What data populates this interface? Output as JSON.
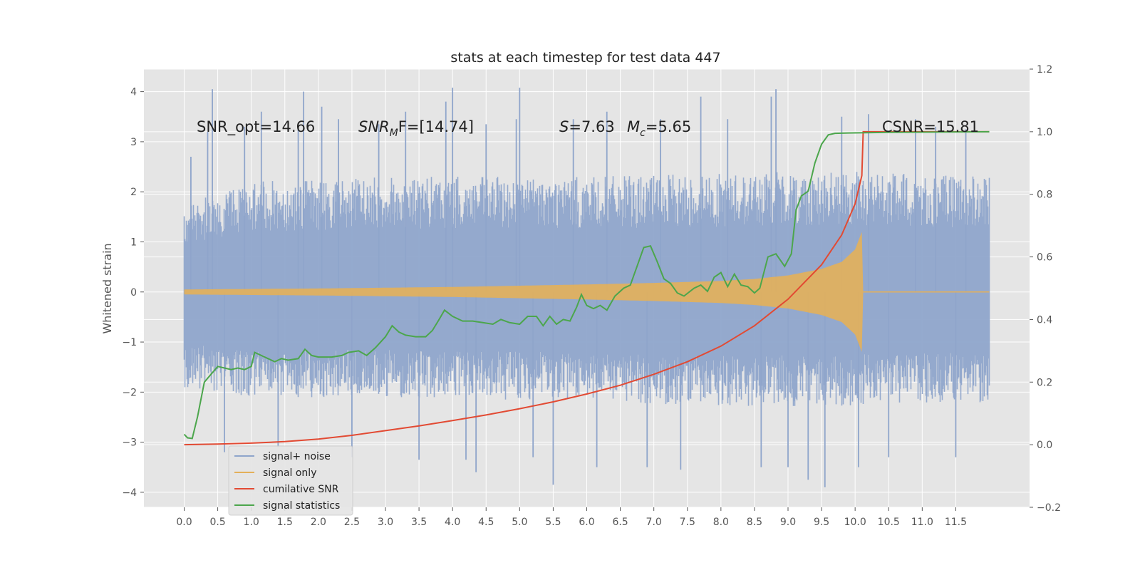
{
  "chart_data": {
    "type": "line",
    "title": "stats at each timestep for test data 447",
    "xlabel": "",
    "ylabel": "Whitened strain",
    "y2label": "",
    "xlim": [
      -0.6,
      12.6
    ],
    "ylim": [
      -4.3,
      4.45
    ],
    "y2lim": [
      -0.2,
      1.2
    ],
    "x_ticks": [
      "0.0",
      "0.5",
      "1.0",
      "1.5",
      "2.0",
      "2.5",
      "3.0",
      "3.5",
      "4.0",
      "4.5",
      "5.0",
      "5.5",
      "6.0",
      "6.5",
      "7.0",
      "7.5",
      "8.0",
      "8.5",
      "9.0",
      "9.5",
      "10.0",
      "10.5",
      "11.0",
      "11.5"
    ],
    "y_ticks": [
      4,
      3,
      2,
      1,
      0,
      -1,
      -2,
      -3,
      -4
    ],
    "y_tick_labels": [
      "4",
      "3",
      "2",
      "1",
      "0",
      "−1",
      "−2",
      "−3",
      "−4"
    ],
    "y2_ticks": [
      1.2,
      1.0,
      0.8,
      0.6,
      0.4,
      0.2,
      0.0,
      -0.2
    ],
    "y2_tick_labels": [
      "1.2",
      "1.0",
      "0.8",
      "0.6",
      "0.4",
      "0.2",
      "0.0",
      "−0.2"
    ],
    "grid": true,
    "legend_position": "lower-left",
    "annotations": {
      "snr_opt": "SNR_opt=14.66",
      "snr_mf": "SNR",
      "snr_mf_sub": "M",
      "snr_mf_rest": "F=[14.74]",
      "s": "S",
      "s_rest": "=7.63",
      "mc": "M",
      "mc_sub": "c",
      "mc_rest": "=5.65",
      "csnr": "CSNR=15.81"
    },
    "series": [
      {
        "name": "signal+ noise",
        "axis": "left",
        "color": "#8fa5cb",
        "kind": "noise-band",
        "x_range": [
          0.0,
          12.0
        ],
        "band_upper": [
          [
            0.0,
            1.75
          ],
          [
            1.0,
            2.2
          ],
          [
            3.0,
            2.3
          ],
          [
            6.0,
            2.3
          ],
          [
            9.0,
            2.4
          ],
          [
            10.0,
            2.4
          ],
          [
            12.0,
            2.3
          ]
        ],
        "band_lower": [
          [
            0.0,
            -1.9
          ],
          [
            1.0,
            -2.1
          ],
          [
            3.0,
            -2.1
          ],
          [
            6.0,
            -2.2
          ],
          [
            9.0,
            -2.3
          ],
          [
            12.0,
            -2.2
          ]
        ],
        "spikes": [
          [
            0.1,
            2.7
          ],
          [
            0.35,
            3.2
          ],
          [
            0.42,
            4.05
          ],
          [
            0.6,
            -3.2
          ],
          [
            0.9,
            3.3
          ],
          [
            1.15,
            3.6
          ],
          [
            1.4,
            -3.1
          ],
          [
            1.7,
            3.3
          ],
          [
            1.78,
            4.0
          ],
          [
            2.05,
            3.7
          ],
          [
            2.3,
            3.45
          ],
          [
            2.5,
            -3.3
          ],
          [
            2.9,
            3.35
          ],
          [
            3.3,
            3.6
          ],
          [
            3.5,
            -3.35
          ],
          [
            3.9,
            3.8
          ],
          [
            4.0,
            4.08
          ],
          [
            4.2,
            -3.35
          ],
          [
            4.35,
            -3.6
          ],
          [
            4.5,
            3.35
          ],
          [
            4.95,
            3.45
          ],
          [
            5.0,
            4.08
          ],
          [
            5.2,
            -3.3
          ],
          [
            5.5,
            -3.85
          ],
          [
            5.8,
            3.45
          ],
          [
            6.15,
            -3.5
          ],
          [
            6.3,
            3.6
          ],
          [
            6.9,
            -3.5
          ],
          [
            7.1,
            3.45
          ],
          [
            7.4,
            -3.55
          ],
          [
            7.7,
            3.9
          ],
          [
            8.1,
            3.45
          ],
          [
            8.6,
            -3.5
          ],
          [
            8.75,
            3.9
          ],
          [
            8.82,
            4.05
          ],
          [
            9.0,
            -3.5
          ],
          [
            9.3,
            -3.75
          ],
          [
            9.55,
            -3.9
          ],
          [
            9.8,
            3.5
          ],
          [
            10.05,
            -3.5
          ],
          [
            10.2,
            3.55
          ],
          [
            10.5,
            -3.3
          ],
          [
            10.9,
            3.45
          ],
          [
            11.2,
            3.3
          ],
          [
            11.5,
            -3.3
          ],
          [
            11.65,
            3.25
          ]
        ]
      },
      {
        "name": "signal only",
        "axis": "left",
        "color": "#e3b05a",
        "kind": "chirp-envelope",
        "envelope": [
          [
            0.0,
            0.05
          ],
          [
            2.0,
            0.07
          ],
          [
            4.0,
            0.1
          ],
          [
            6.0,
            0.15
          ],
          [
            7.0,
            0.18
          ],
          [
            8.0,
            0.22
          ],
          [
            8.5,
            0.26
          ],
          [
            9.0,
            0.33
          ],
          [
            9.5,
            0.46
          ],
          [
            9.8,
            0.6
          ],
          [
            10.0,
            0.85
          ],
          [
            10.1,
            1.2
          ],
          [
            10.12,
            0.0
          ],
          [
            12.0,
            0.0
          ]
        ]
      },
      {
        "name": "cumilative SNR",
        "axis": "right",
        "color": "#e24a33",
        "points": [
          [
            0.0,
            0.0
          ],
          [
            0.5,
            0.002
          ],
          [
            1.0,
            0.005
          ],
          [
            1.5,
            0.01
          ],
          [
            2.0,
            0.018
          ],
          [
            2.5,
            0.03
          ],
          [
            3.0,
            0.045
          ],
          [
            3.5,
            0.06
          ],
          [
            4.0,
            0.077
          ],
          [
            4.5,
            0.095
          ],
          [
            5.0,
            0.115
          ],
          [
            5.5,
            0.137
          ],
          [
            6.0,
            0.162
          ],
          [
            6.5,
            0.19
          ],
          [
            7.0,
            0.225
          ],
          [
            7.5,
            0.265
          ],
          [
            8.0,
            0.315
          ],
          [
            8.5,
            0.38
          ],
          [
            9.0,
            0.465
          ],
          [
            9.5,
            0.575
          ],
          [
            9.8,
            0.67
          ],
          [
            10.0,
            0.77
          ],
          [
            10.1,
            0.86
          ],
          [
            10.12,
            1.0
          ],
          [
            12.0,
            1.0
          ]
        ]
      },
      {
        "name": "signal statistics",
        "axis": "right",
        "color": "#4ca64c",
        "points": [
          [
            0.0,
            0.033
          ],
          [
            0.05,
            0.022
          ],
          [
            0.12,
            0.02
          ],
          [
            0.2,
            0.09
          ],
          [
            0.3,
            0.2
          ],
          [
            0.4,
            0.225
          ],
          [
            0.5,
            0.25
          ],
          [
            0.6,
            0.245
          ],
          [
            0.7,
            0.24
          ],
          [
            0.8,
            0.245
          ],
          [
            0.9,
            0.24
          ],
          [
            1.0,
            0.25
          ],
          [
            1.05,
            0.295
          ],
          [
            1.2,
            0.28
          ],
          [
            1.35,
            0.265
          ],
          [
            1.45,
            0.275
          ],
          [
            1.55,
            0.27
          ],
          [
            1.7,
            0.275
          ],
          [
            1.8,
            0.305
          ],
          [
            1.9,
            0.285
          ],
          [
            2.0,
            0.28
          ],
          [
            2.2,
            0.28
          ],
          [
            2.35,
            0.285
          ],
          [
            2.45,
            0.295
          ],
          [
            2.6,
            0.3
          ],
          [
            2.72,
            0.285
          ],
          [
            2.85,
            0.31
          ],
          [
            3.0,
            0.345
          ],
          [
            3.1,
            0.38
          ],
          [
            3.2,
            0.36
          ],
          [
            3.3,
            0.35
          ],
          [
            3.45,
            0.345
          ],
          [
            3.6,
            0.345
          ],
          [
            3.7,
            0.365
          ],
          [
            3.8,
            0.4
          ],
          [
            3.88,
            0.43
          ],
          [
            4.0,
            0.41
          ],
          [
            4.15,
            0.395
          ],
          [
            4.3,
            0.395
          ],
          [
            4.45,
            0.39
          ],
          [
            4.6,
            0.385
          ],
          [
            4.72,
            0.4
          ],
          [
            4.85,
            0.39
          ],
          [
            5.0,
            0.385
          ],
          [
            5.12,
            0.41
          ],
          [
            5.25,
            0.41
          ],
          [
            5.35,
            0.38
          ],
          [
            5.45,
            0.41
          ],
          [
            5.55,
            0.385
          ],
          [
            5.65,
            0.4
          ],
          [
            5.75,
            0.395
          ],
          [
            5.85,
            0.44
          ],
          [
            5.92,
            0.48
          ],
          [
            6.0,
            0.445
          ],
          [
            6.1,
            0.435
          ],
          [
            6.2,
            0.445
          ],
          [
            6.3,
            0.43
          ],
          [
            6.42,
            0.475
          ],
          [
            6.55,
            0.5
          ],
          [
            6.65,
            0.51
          ],
          [
            6.75,
            0.57
          ],
          [
            6.85,
            0.63
          ],
          [
            6.95,
            0.635
          ],
          [
            7.05,
            0.585
          ],
          [
            7.15,
            0.53
          ],
          [
            7.25,
            0.515
          ],
          [
            7.35,
            0.485
          ],
          [
            7.45,
            0.475
          ],
          [
            7.6,
            0.5
          ],
          [
            7.7,
            0.51
          ],
          [
            7.8,
            0.49
          ],
          [
            7.9,
            0.535
          ],
          [
            8.0,
            0.55
          ],
          [
            8.1,
            0.505
          ],
          [
            8.2,
            0.545
          ],
          [
            8.3,
            0.51
          ],
          [
            8.4,
            0.505
          ],
          [
            8.5,
            0.485
          ],
          [
            8.58,
            0.5
          ],
          [
            8.7,
            0.6
          ],
          [
            8.82,
            0.61
          ],
          [
            8.95,
            0.57
          ],
          [
            9.05,
            0.61
          ],
          [
            9.12,
            0.75
          ],
          [
            9.2,
            0.795
          ],
          [
            9.3,
            0.81
          ],
          [
            9.4,
            0.9
          ],
          [
            9.5,
            0.96
          ],
          [
            9.6,
            0.99
          ],
          [
            9.7,
            0.995
          ],
          [
            9.9,
            0.996
          ],
          [
            10.5,
            0.998
          ],
          [
            12.0,
            1.0
          ]
        ]
      }
    ]
  }
}
